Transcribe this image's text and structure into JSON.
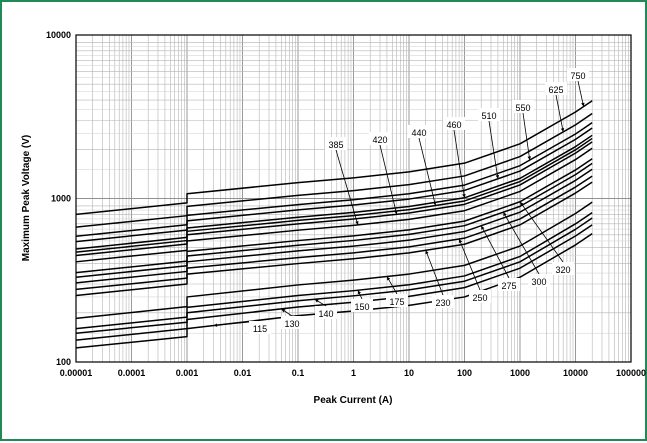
{
  "chart_data": {
    "type": "line",
    "title": "",
    "xlabel": "Peak Current (A)",
    "ylabel": "Maximum Peak Voltage (V)",
    "x_scale": "log",
    "y_scale": "log",
    "xlim": [
      1e-05,
      100000
    ],
    "ylim": [
      100,
      10000
    ],
    "grid": true,
    "x_tick_labels": [
      "0.00001",
      "0.0001",
      "0.001",
      "0.01",
      "0.1",
      "1",
      "10",
      "100",
      "1000",
      "10000",
      "100000"
    ],
    "y_tick_labels": [
      "100",
      "1000",
      "10000"
    ],
    "x_points": [
      1e-05,
      0.001,
      0.001,
      0.1,
      1,
      10,
      100,
      1000,
      10000,
      20000
    ],
    "series": [
      {
        "name": "115",
        "values": [
          122,
          143,
          160,
          192,
          205,
          222,
          250,
          330,
          520,
          610
        ]
      },
      {
        "name": "130",
        "values": [
          136,
          160,
          182,
          217,
          232,
          252,
          285,
          375,
          590,
          690
        ]
      },
      {
        "name": "140",
        "values": [
          150,
          175,
          200,
          237,
          254,
          276,
          312,
          410,
          648,
          760
        ]
      },
      {
        "name": "150",
        "values": [
          160,
          188,
          216,
          255,
          273,
          297,
          336,
          442,
          700,
          820
        ]
      },
      {
        "name": "175",
        "values": [
          185,
          218,
          250,
          296,
          317,
          345,
          390,
          512,
          810,
          950
        ]
      },
      {
        "name": "230",
        "values": [
          255,
          300,
          345,
          400,
          428,
          465,
          525,
          690,
          1080,
          1260
        ]
      },
      {
        "name": "250",
        "values": [
          278,
          326,
          375,
          435,
          465,
          506,
          572,
          750,
          1175,
          1370
        ]
      },
      {
        "name": "275",
        "values": [
          305,
          358,
          410,
          478,
          511,
          556,
          628,
          825,
          1290,
          1510
        ]
      },
      {
        "name": "300",
        "values": [
          330,
          388,
          445,
          518,
          554,
          603,
          682,
          895,
          1400,
          1640
        ]
      },
      {
        "name": "320",
        "values": [
          352,
          414,
          475,
          553,
          591,
          643,
          727,
          955,
          1495,
          1750
        ]
      },
      {
        "name": "385",
        "values": [
          410,
          482,
          550,
          640,
          685,
          745,
          842,
          1105,
          1730,
          2030
        ]
      },
      {
        "name": "420",
        "values": [
          448,
          527,
          600,
          700,
          749,
          815,
          921,
          1210,
          1895,
          2220
        ]
      },
      {
        "name": "440",
        "values": [
          470,
          553,
          630,
          735,
          786,
          855,
          966,
          1270,
          1985,
          2330
        ]
      },
      {
        "name": "460",
        "values": [
          491,
          578,
          660,
          768,
          822,
          894,
          1010,
          1328,
          2075,
          2435
        ]
      },
      {
        "name": "510",
        "values": [
          545,
          641,
          730,
          852,
          912,
          992,
          1120,
          1472,
          2300,
          2700
        ]
      },
      {
        "name": "550",
        "values": [
          588,
          691,
          788,
          918,
          983,
          1070,
          1208,
          1588,
          2480,
          2910
        ]
      },
      {
        "name": "625",
        "values": [
          668,
          785,
          895,
          1045,
          1118,
          1216,
          1374,
          1805,
          2820,
          3310
        ]
      },
      {
        "name": "750",
        "values": [
          800,
          940,
          1070,
          1250,
          1338,
          1455,
          1645,
          2160,
          3380,
          3960
        ]
      }
    ]
  }
}
